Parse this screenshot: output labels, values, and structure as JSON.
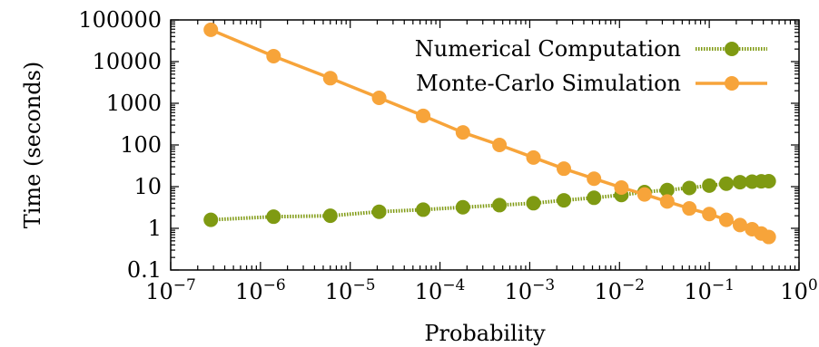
{
  "chart_data": {
    "type": "line",
    "title": "",
    "xlabel": "Probability",
    "ylabel": "Time (seconds)",
    "x_scale": "log",
    "y_scale": "log",
    "xlim": [
      1e-07,
      1
    ],
    "ylim": [
      0.1,
      100000
    ],
    "grid": false,
    "legend_position": "top-right",
    "x_ticks": [
      {
        "value": 1e-07,
        "base": "10",
        "exp": "−7"
      },
      {
        "value": 1e-06,
        "base": "10",
        "exp": "−6"
      },
      {
        "value": 1e-05,
        "base": "10",
        "exp": "−5"
      },
      {
        "value": 0.0001,
        "base": "10",
        "exp": "−4"
      },
      {
        "value": 0.001,
        "base": "10",
        "exp": "−3"
      },
      {
        "value": 0.01,
        "base": "10",
        "exp": "−2"
      },
      {
        "value": 0.1,
        "base": "10",
        "exp": "−1"
      },
      {
        "value": 1,
        "base": "10",
        "exp": "0"
      }
    ],
    "y_ticks": [
      {
        "value": 0.1,
        "label": "0.1"
      },
      {
        "value": 1,
        "label": "1"
      },
      {
        "value": 10,
        "label": "10"
      },
      {
        "value": 100,
        "label": "100"
      },
      {
        "value": 1000,
        "label": "1000"
      },
      {
        "value": 10000,
        "label": "10000"
      },
      {
        "value": 100000,
        "label": "100000"
      }
    ],
    "series": [
      {
        "name": "Numerical Computation",
        "color": "#7f9a12",
        "line_style": "dotted",
        "x": [
          2.8e-07,
          1.4e-06,
          6e-06,
          2.1e-05,
          6.5e-05,
          0.00018,
          0.00046,
          0.0011,
          0.0024,
          0.0052,
          0.0105,
          0.019,
          0.034,
          0.06,
          0.1,
          0.155,
          0.22,
          0.3,
          0.38,
          0.46
        ],
        "y": [
          1.6,
          1.9,
          2.0,
          2.5,
          2.8,
          3.2,
          3.6,
          4.0,
          4.7,
          5.4,
          6.3,
          7.4,
          8.3,
          9.3,
          10.6,
          11.8,
          12.8,
          13.2,
          13.4,
          13.5
        ]
      },
      {
        "name": "Monte-Carlo Simulation",
        "color": "#f7a43a",
        "line_style": "solid",
        "x": [
          2.8e-07,
          1.4e-06,
          6e-06,
          2.1e-05,
          6.5e-05,
          0.00018,
          0.00046,
          0.0011,
          0.0024,
          0.0052,
          0.0105,
          0.019,
          0.034,
          0.06,
          0.1,
          0.155,
          0.22,
          0.3,
          0.38,
          0.46
        ],
        "y": [
          58000,
          13500,
          4000,
          1350,
          500,
          200,
          100,
          50,
          27,
          15.5,
          9.5,
          6.5,
          4.4,
          3.0,
          2.2,
          1.6,
          1.2,
          0.95,
          0.75,
          0.62
        ]
      }
    ]
  }
}
